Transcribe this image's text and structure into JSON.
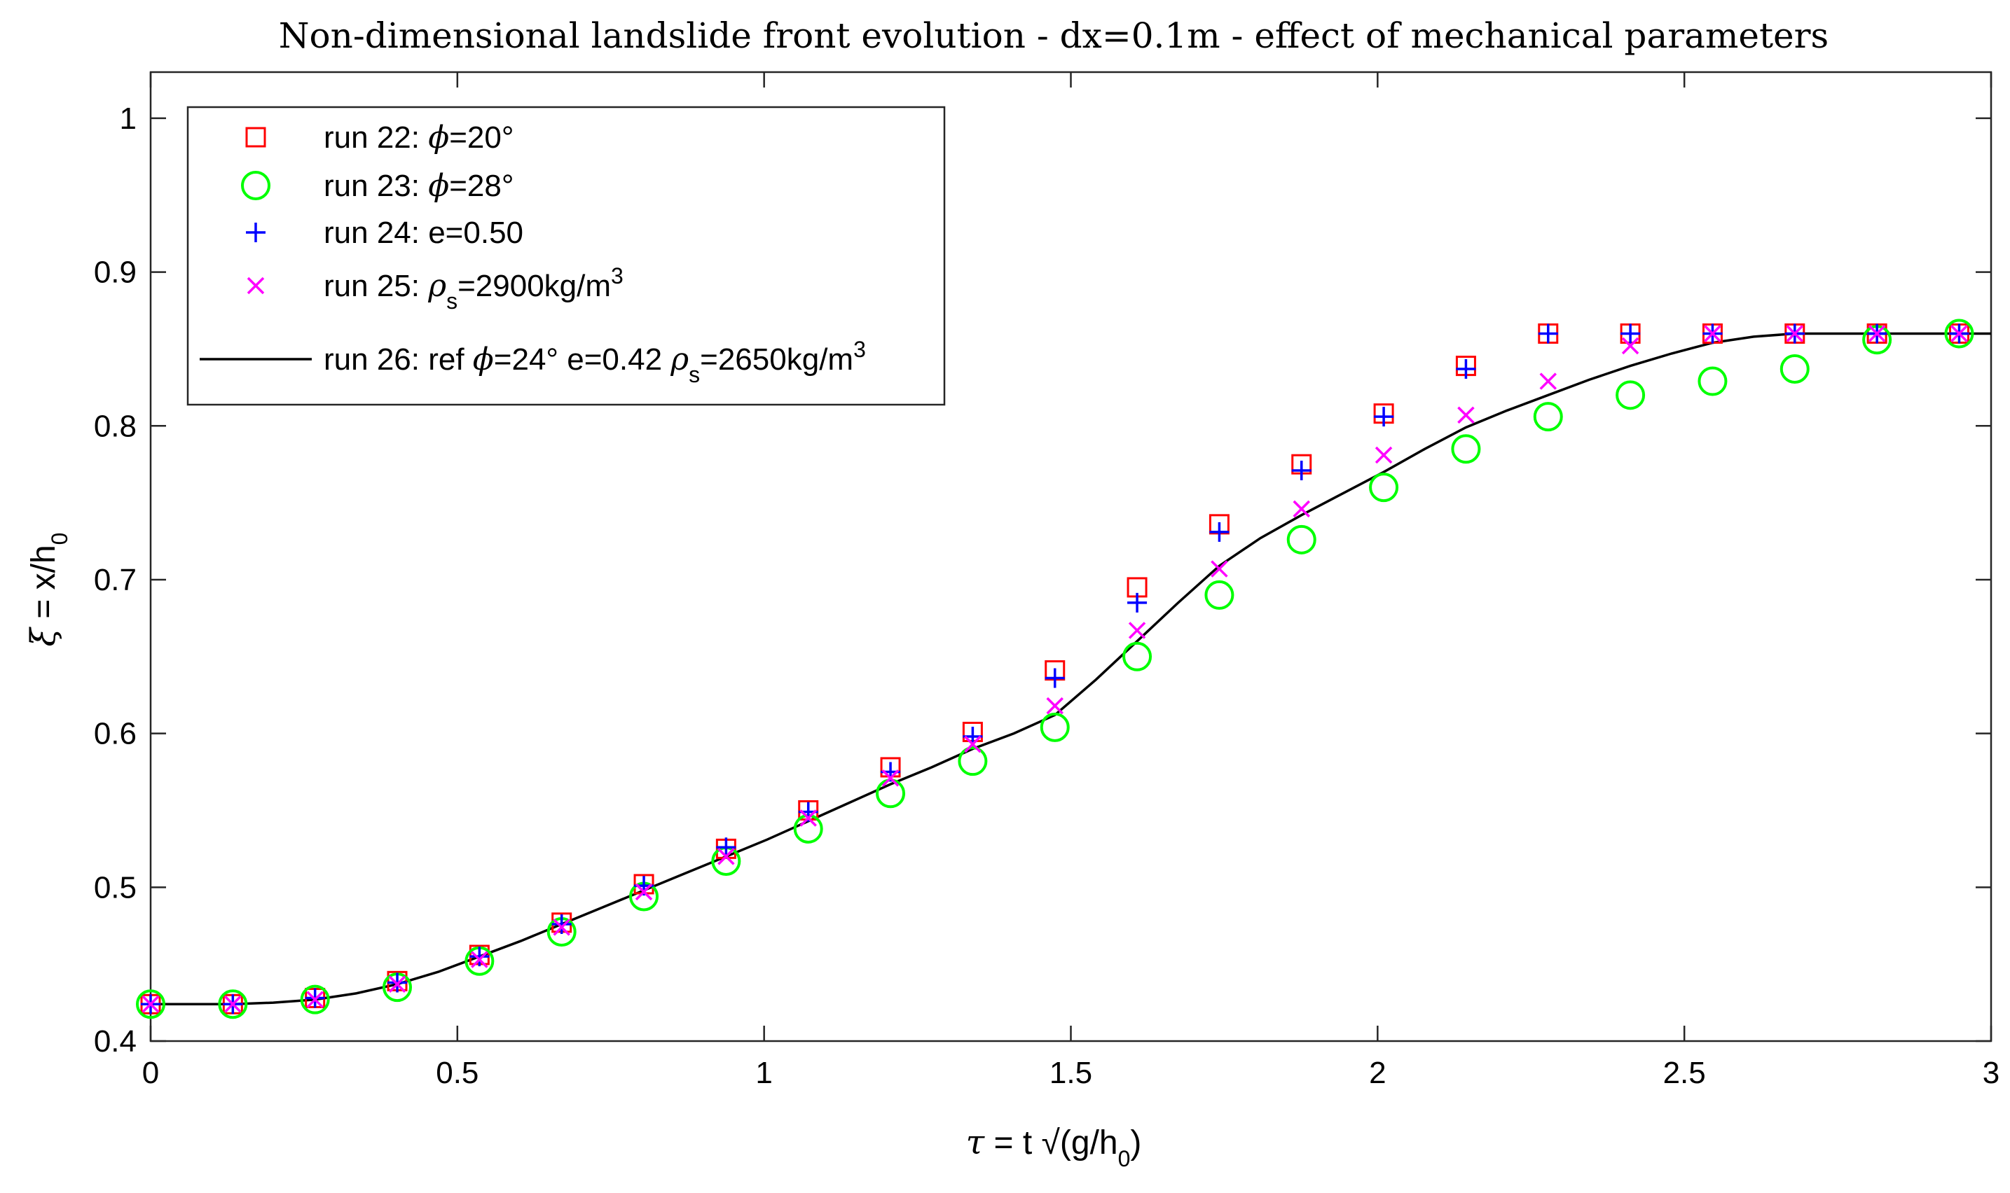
{
  "chart_data": {
    "type": "scatter",
    "title": "Non-dimensional landslide front evolution - dx=0.1m - effect of mechanical parameters",
    "xlabel": {
      "sym": "τ",
      "rest": " = t √(g/h",
      "sub": "0",
      "close": ")"
    },
    "ylabel": {
      "sym": "ξ",
      "rest": " = x/h",
      "sub": "0"
    },
    "xlim": [
      0,
      3
    ],
    "ylim": [
      0.4,
      1.03
    ],
    "xticks": [
      0,
      0.5,
      1,
      1.5,
      2,
      2.5,
      3
    ],
    "xtick_labels": [
      "0",
      "0.5",
      "1",
      "1.5",
      "2",
      "2.5",
      "3"
    ],
    "yticks": [
      0.4,
      0.5,
      0.6,
      0.7,
      0.8,
      0.9,
      1.0
    ],
    "ytick_labels": [
      "0.4",
      "0.5",
      "0.6",
      "0.7",
      "0.8",
      "0.9",
      "1"
    ],
    "legend_position": "top-left",
    "x": [
      0,
      0.134,
      0.268,
      0.402,
      0.536,
      0.67,
      0.804,
      0.938,
      1.072,
      1.206,
      1.34,
      1.474,
      1.608,
      1.742,
      1.876,
      2.01,
      2.144,
      2.278,
      2.412,
      2.546,
      2.68,
      2.814,
      2.948
    ],
    "series": [
      {
        "name": "run 22",
        "marker": "square",
        "color": "#ff0000",
        "legend": {
          "prefix": "run 22: ",
          "sym": "ϕ",
          "rest": "=20°"
        },
        "values": [
          0.424,
          0.424,
          0.428,
          0.439,
          0.456,
          0.477,
          0.502,
          0.525,
          0.55,
          0.578,
          0.601,
          0.641,
          0.695,
          0.736,
          0.775,
          0.808,
          0.839,
          0.86,
          0.86,
          0.86,
          0.86,
          0.86,
          0.86
        ]
      },
      {
        "name": "run 23",
        "marker": "circle",
        "color": "#00ff00",
        "legend": {
          "prefix": "run 23: ",
          "sym": "ϕ",
          "rest": "=28°"
        },
        "values": [
          0.424,
          0.424,
          0.427,
          0.435,
          0.452,
          0.471,
          0.494,
          0.517,
          0.538,
          0.561,
          0.582,
          0.604,
          0.65,
          0.69,
          0.726,
          0.76,
          0.785,
          0.806,
          0.82,
          0.829,
          0.837,
          0.856,
          0.86
        ]
      },
      {
        "name": "run 24",
        "marker": "plus",
        "color": "#0000ff",
        "legend": {
          "prefix": "run 24: e=0.50"
        },
        "values": [
          0.424,
          0.424,
          0.428,
          0.438,
          0.455,
          0.476,
          0.501,
          0.526,
          0.549,
          0.575,
          0.598,
          0.636,
          0.685,
          0.731,
          0.771,
          0.806,
          0.837,
          0.86,
          0.86,
          0.86,
          0.86,
          0.86,
          0.86
        ]
      },
      {
        "name": "run 25",
        "marker": "x",
        "color": "#ff00ff",
        "legend": {
          "prefix": "run 25: ",
          "sym": "ρ",
          "sub": "s",
          "rest": "=2900kg/m",
          "sup": "3"
        },
        "values": [
          0.424,
          0.424,
          0.427,
          0.437,
          0.453,
          0.474,
          0.497,
          0.52,
          0.545,
          0.571,
          0.593,
          0.618,
          0.667,
          0.707,
          0.746,
          0.781,
          0.807,
          0.829,
          0.852,
          0.86,
          0.86,
          0.86,
          0.86
        ]
      },
      {
        "name": "run 26",
        "marker": "line",
        "color": "#000000",
        "legend": {
          "prefix": "run 26: ref ",
          "sym": "ϕ",
          "rest": "=24° e=0.42 ",
          "sym2": "ρ",
          "sub": "s",
          "rest2": "=2650kg/m",
          "sup": "3"
        },
        "line_x": [
          0,
          0.05,
          0.1,
          0.134,
          0.2,
          0.268,
          0.335,
          0.402,
          0.469,
          0.536,
          0.603,
          0.67,
          0.737,
          0.804,
          0.871,
          0.938,
          1.005,
          1.072,
          1.139,
          1.206,
          1.273,
          1.34,
          1.407,
          1.474,
          1.541,
          1.608,
          1.675,
          1.742,
          1.809,
          1.876,
          1.943,
          2.01,
          2.077,
          2.144,
          2.211,
          2.278,
          2.345,
          2.412,
          2.479,
          2.546,
          2.613,
          2.68,
          2.75,
          2.814,
          2.88,
          2.948,
          3.0
        ],
        "line_y": [
          0.424,
          0.424,
          0.424,
          0.424,
          0.425,
          0.427,
          0.431,
          0.437,
          0.445,
          0.455,
          0.465,
          0.476,
          0.487,
          0.498,
          0.509,
          0.52,
          0.531,
          0.543,
          0.555,
          0.567,
          0.578,
          0.59,
          0.6,
          0.612,
          0.635,
          0.66,
          0.685,
          0.709,
          0.727,
          0.742,
          0.756,
          0.77,
          0.785,
          0.799,
          0.81,
          0.82,
          0.83,
          0.839,
          0.847,
          0.854,
          0.858,
          0.86,
          0.86,
          0.86,
          0.86,
          0.86,
          0.86
        ]
      }
    ]
  }
}
